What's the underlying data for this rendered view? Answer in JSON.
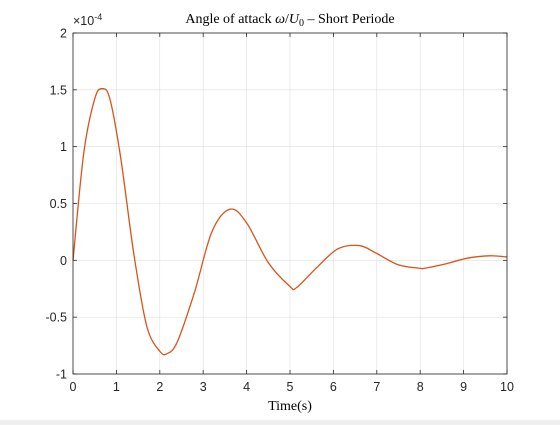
{
  "chart_data": {
    "type": "line",
    "title_text": "Angle of attack ",
    "title_math_omega": "ω",
    "title_slash": "/",
    "title_math_U": "U",
    "title_math_sub": "0",
    "title_rest": " – Short Periode",
    "xlabel": "Time(s)",
    "ylabel": "",
    "xlim": [
      0,
      10
    ],
    "ylim": [
      -1,
      2
    ],
    "y_exponent_label": "×10",
    "y_exponent_power": "-4",
    "xticks": [
      "0",
      "1",
      "2",
      "3",
      "4",
      "5",
      "6",
      "7",
      "8",
      "9",
      "10"
    ],
    "yticks": [
      "-1",
      "-0.5",
      "0",
      "0.5",
      "1",
      "1.5",
      "2"
    ],
    "grid": true,
    "series": [
      {
        "color": "#D95319",
        "x": [
          0,
          0.25,
          0.5,
          0.67,
          0.85,
          1.1,
          1.4,
          1.7,
          2.0,
          2.17,
          2.4,
          2.8,
          3.2,
          3.62,
          4.0,
          4.5,
          5.0,
          5.15,
          5.6,
          6.1,
          6.6,
          7.0,
          7.5,
          8.0,
          8.1,
          8.6,
          9.1,
          9.6,
          10.0
        ],
        "values": [
          0,
          0.95,
          1.42,
          1.51,
          1.42,
          0.9,
          0.06,
          -0.58,
          -0.8,
          -0.82,
          -0.72,
          -0.28,
          0.25,
          0.45,
          0.33,
          -0.02,
          -0.23,
          -0.24,
          -0.07,
          0.1,
          0.13,
          0.06,
          -0.04,
          -0.07,
          -0.07,
          -0.03,
          0.02,
          0.04,
          0.03
        ]
      }
    ]
  }
}
